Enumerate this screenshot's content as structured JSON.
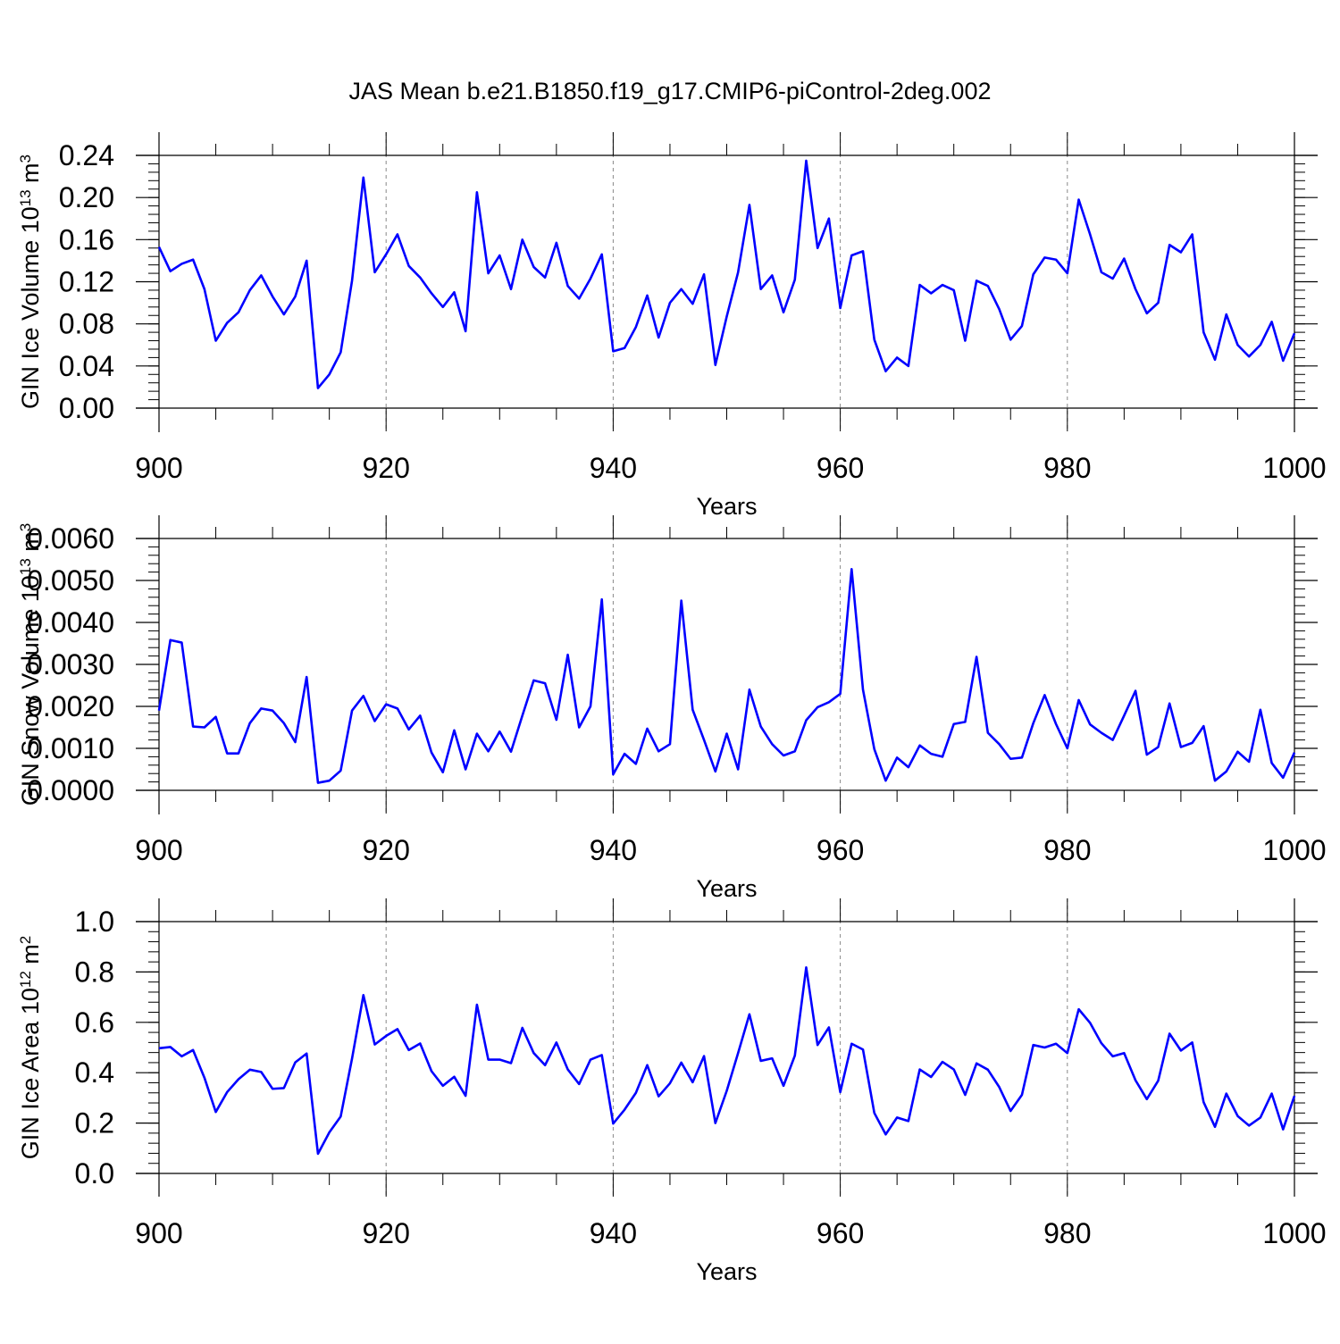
{
  "figure": {
    "title": "JAS Mean b.e21.B1850.f19_g17.CMIP6-piControl-2deg.002",
    "line_color": "#0000ff",
    "frame_color": "#000000",
    "grid_color": "#888888"
  },
  "chart_data": [
    {
      "type": "line",
      "ylabel": {
        "text": "GIN Ice Volume 10",
        "sup": "13",
        "unit": " m",
        "unit_sup": "3"
      },
      "xlabel": "Years",
      "xlim": [
        900,
        1000
      ],
      "ylim": [
        0.0,
        0.24
      ],
      "xticks": [
        900,
        920,
        940,
        960,
        980,
        1000
      ],
      "yticks": [
        "0.00",
        "0.04",
        "0.08",
        "0.12",
        "0.16",
        "0.20",
        "0.24"
      ],
      "y_minor_step": 0.008,
      "x_start": 900,
      "values": [
        0.153,
        0.13,
        0.137,
        0.141,
        0.113,
        0.064,
        0.081,
        0.091,
        0.112,
        0.126,
        0.106,
        0.089,
        0.106,
        0.14,
        0.019,
        0.032,
        0.053,
        0.121,
        0.219,
        0.129,
        0.146,
        0.165,
        0.135,
        0.124,
        0.109,
        0.096,
        0.11,
        0.073,
        0.205,
        0.128,
        0.145,
        0.113,
        0.16,
        0.134,
        0.124,
        0.157,
        0.116,
        0.104,
        0.123,
        0.146,
        0.054,
        0.057,
        0.077,
        0.107,
        0.067,
        0.1,
        0.113,
        0.099,
        0.127,
        0.041,
        0.087,
        0.129,
        0.193,
        0.113,
        0.126,
        0.091,
        0.122,
        0.235,
        0.152,
        0.18,
        0.095,
        0.145,
        0.149,
        0.065,
        0.035,
        0.048,
        0.04,
        0.117,
        0.109,
        0.117,
        0.112,
        0.064,
        0.121,
        0.116,
        0.094,
        0.065,
        0.078,
        0.127,
        0.143,
        0.141,
        0.128,
        0.198,
        0.165,
        0.129,
        0.123,
        0.142,
        0.113,
        0.09,
        0.1,
        0.155,
        0.148,
        0.165,
        0.072,
        0.046,
        0.089,
        0.06,
        0.049,
        0.06,
        0.082,
        0.045,
        0.071
      ]
    },
    {
      "type": "line",
      "ylabel": {
        "text": "GIN Snow Volume 10",
        "sup": "13",
        "unit": " m",
        "unit_sup": "3"
      },
      "xlabel": "Years",
      "xlim": [
        900,
        1000
      ],
      "ylim": [
        0.0,
        0.006
      ],
      "xticks": [
        900,
        920,
        940,
        960,
        980,
        1000
      ],
      "yticks": [
        "0.0000",
        "0.0010",
        "0.0020",
        "0.0030",
        "0.0040",
        "0.0050",
        "0.0060"
      ],
      "y_minor_step": 0.0002,
      "x_start": 900,
      "values": [
        0.0019,
        0.00358,
        0.00352,
        0.00152,
        0.0015,
        0.00175,
        0.00088,
        0.00088,
        0.0016,
        0.00195,
        0.0019,
        0.0016,
        0.00115,
        0.0027,
        0.00018,
        0.00023,
        0.00047,
        0.0019,
        0.00225,
        0.00165,
        0.00205,
        0.00195,
        0.00145,
        0.00178,
        0.0009,
        0.00043,
        0.00143,
        0.0005,
        0.00135,
        0.00093,
        0.0014,
        0.00092,
        0.00178,
        0.00262,
        0.00255,
        0.00168,
        0.00323,
        0.0015,
        0.002,
        0.00455,
        0.00038,
        0.00087,
        0.00063,
        0.00147,
        0.00093,
        0.0011,
        0.00452,
        0.00192,
        0.0012,
        0.00045,
        0.00135,
        0.0005,
        0.0024,
        0.00152,
        0.0011,
        0.00083,
        0.00093,
        0.00167,
        0.00198,
        0.0021,
        0.0023,
        0.00527,
        0.0024,
        0.00098,
        0.00023,
        0.00078,
        0.00055,
        0.00107,
        0.00087,
        0.0008,
        0.00158,
        0.00163,
        0.00318,
        0.00137,
        0.0011,
        0.00075,
        0.00078,
        0.0016,
        0.00227,
        0.00158,
        0.001,
        0.00215,
        0.00157,
        0.00137,
        0.0012,
        0.00178,
        0.00237,
        0.00085,
        0.00103,
        0.00207,
        0.00103,
        0.00113,
        0.00153,
        0.00023,
        0.00045,
        0.00092,
        0.00068,
        0.00192,
        0.00065,
        0.0003,
        0.0009
      ]
    },
    {
      "type": "line",
      "ylabel": {
        "text": "GIN Ice Area 10",
        "sup": "12",
        "unit": " m",
        "unit_sup": "2"
      },
      "xlabel": "Years",
      "xlim": [
        900,
        1000
      ],
      "ylim": [
        0.0,
        1.0
      ],
      "xticks": [
        900,
        920,
        940,
        960,
        980,
        1000
      ],
      "yticks": [
        "0.0",
        "0.2",
        "0.4",
        "0.6",
        "0.8",
        "1.0"
      ],
      "y_minor_step": 0.04,
      "x_start": 900,
      "values": [
        0.497,
        0.502,
        0.465,
        0.49,
        0.38,
        0.244,
        0.323,
        0.374,
        0.412,
        0.403,
        0.336,
        0.339,
        0.441,
        0.476,
        0.078,
        0.163,
        0.226,
        0.456,
        0.708,
        0.512,
        0.546,
        0.573,
        0.49,
        0.516,
        0.406,
        0.348,
        0.384,
        0.308,
        0.67,
        0.452,
        0.452,
        0.438,
        0.578,
        0.478,
        0.43,
        0.52,
        0.413,
        0.355,
        0.452,
        0.47,
        0.198,
        0.253,
        0.32,
        0.43,
        0.306,
        0.358,
        0.44,
        0.362,
        0.466,
        0.2,
        0.328,
        0.478,
        0.632,
        0.447,
        0.457,
        0.348,
        0.468,
        0.818,
        0.51,
        0.58,
        0.323,
        0.515,
        0.492,
        0.24,
        0.155,
        0.222,
        0.208,
        0.413,
        0.383,
        0.443,
        0.413,
        0.312,
        0.437,
        0.412,
        0.343,
        0.248,
        0.312,
        0.51,
        0.5,
        0.515,
        0.478,
        0.652,
        0.598,
        0.517,
        0.465,
        0.478,
        0.37,
        0.295,
        0.368,
        0.555,
        0.488,
        0.52,
        0.283,
        0.185,
        0.317,
        0.228,
        0.19,
        0.222,
        0.317,
        0.175,
        0.308
      ]
    }
  ]
}
